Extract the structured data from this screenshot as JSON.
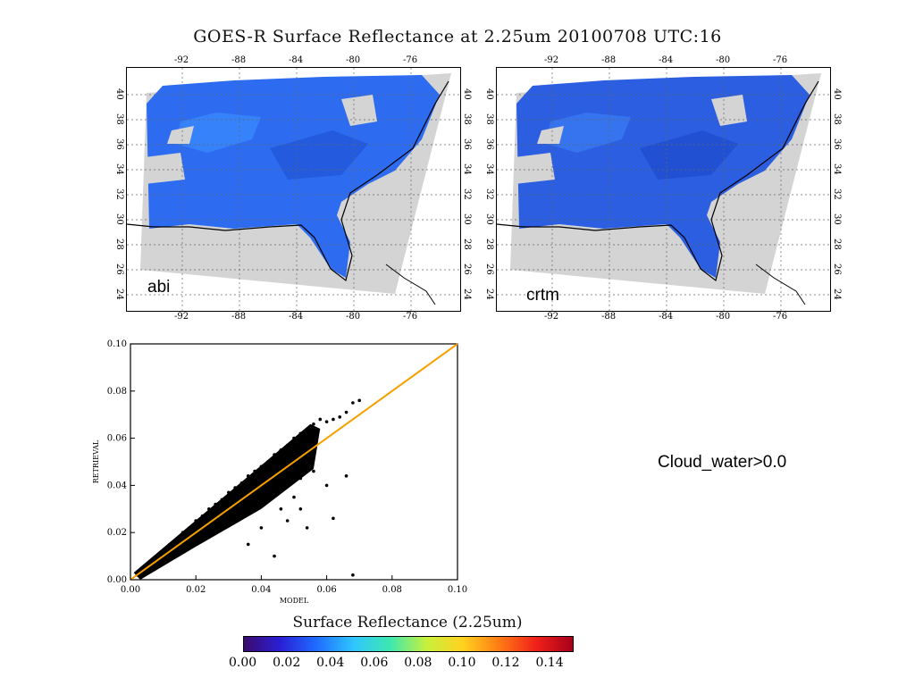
{
  "title": "GOES-R Surface Reflectance at 2.25um 20100708 UTC:16",
  "maps": [
    {
      "label": "abi",
      "lon_ticks": [
        "-92",
        "-88",
        "-84",
        "-80",
        "-76"
      ],
      "lat_ticks": [
        "24",
        "26",
        "28",
        "30",
        "32",
        "34",
        "36",
        "38",
        "40"
      ]
    },
    {
      "label": "crtm",
      "lon_ticks": [
        "-92",
        "-88",
        "-84",
        "-80",
        "-76"
      ],
      "lat_ticks": [
        "24",
        "26",
        "28",
        "30",
        "32",
        "34",
        "36",
        "38",
        "40"
      ]
    }
  ],
  "annotation": "Cloud_water>0.0",
  "colorbar": {
    "title": "Surface Reflectance (2.25um)",
    "ticks": [
      "0.00",
      "0.02",
      "0.04",
      "0.06",
      "0.08",
      "0.10",
      "0.12",
      "0.14"
    ],
    "range": [
      0,
      0.15
    ],
    "colors": [
      "#3b0a6e",
      "#2a1fd6",
      "#1f6dff",
      "#2fc6ff",
      "#3de8b0",
      "#c8f03c",
      "#ffd21f",
      "#ff7a14",
      "#f0201a",
      "#a8001a"
    ]
  },
  "chart_data": {
    "type": "scatter",
    "xlabel": "MODEL",
    "ylabel": "RETRIEVAL",
    "xlim": [
      0,
      0.1
    ],
    "ylim": [
      0,
      0.1
    ],
    "xticks": [
      "0.00",
      "0.02",
      "0.04",
      "0.06",
      "0.08",
      "0.10"
    ],
    "yticks": [
      "0.00",
      "0.02",
      "0.04",
      "0.06",
      "0.08",
      "0.10"
    ],
    "one_to_one_line": {
      "x": [
        0,
        0.1
      ],
      "y": [
        0,
        0.1
      ],
      "color": "#f5a000"
    },
    "points": [
      [
        0.002,
        0.002
      ],
      [
        0.004,
        0.005
      ],
      [
        0.006,
        0.007
      ],
      [
        0.008,
        0.01
      ],
      [
        0.01,
        0.012
      ],
      [
        0.012,
        0.015
      ],
      [
        0.014,
        0.017
      ],
      [
        0.016,
        0.02
      ],
      [
        0.018,
        0.022
      ],
      [
        0.02,
        0.025
      ],
      [
        0.022,
        0.027
      ],
      [
        0.024,
        0.03
      ],
      [
        0.026,
        0.032
      ],
      [
        0.028,
        0.034
      ],
      [
        0.03,
        0.037
      ],
      [
        0.032,
        0.039
      ],
      [
        0.034,
        0.041
      ],
      [
        0.036,
        0.044
      ],
      [
        0.038,
        0.046
      ],
      [
        0.04,
        0.048
      ],
      [
        0.042,
        0.05
      ],
      [
        0.044,
        0.053
      ],
      [
        0.046,
        0.055
      ],
      [
        0.048,
        0.057
      ],
      [
        0.05,
        0.06
      ],
      [
        0.052,
        0.062
      ],
      [
        0.054,
        0.063
      ],
      [
        0.056,
        0.066
      ],
      [
        0.058,
        0.068
      ],
      [
        0.06,
        0.067
      ],
      [
        0.062,
        0.068
      ],
      [
        0.064,
        0.069
      ],
      [
        0.066,
        0.071
      ],
      [
        0.068,
        0.075
      ],
      [
        0.07,
        0.076
      ],
      [
        0.02,
        0.017
      ],
      [
        0.024,
        0.02
      ],
      [
        0.028,
        0.024
      ],
      [
        0.032,
        0.026
      ],
      [
        0.036,
        0.03
      ],
      [
        0.04,
        0.033
      ],
      [
        0.044,
        0.036
      ],
      [
        0.048,
        0.04
      ],
      [
        0.052,
        0.043
      ],
      [
        0.056,
        0.046
      ],
      [
        0.05,
        0.035
      ],
      [
        0.046,
        0.03
      ],
      [
        0.04,
        0.022
      ],
      [
        0.036,
        0.015
      ],
      [
        0.048,
        0.025
      ],
      [
        0.052,
        0.03
      ],
      [
        0.06,
        0.04
      ],
      [
        0.062,
        0.026
      ],
      [
        0.066,
        0.044
      ],
      [
        0.054,
        0.022
      ],
      [
        0.044,
        0.01
      ],
      [
        0.068,
        0.002
      ]
    ]
  }
}
